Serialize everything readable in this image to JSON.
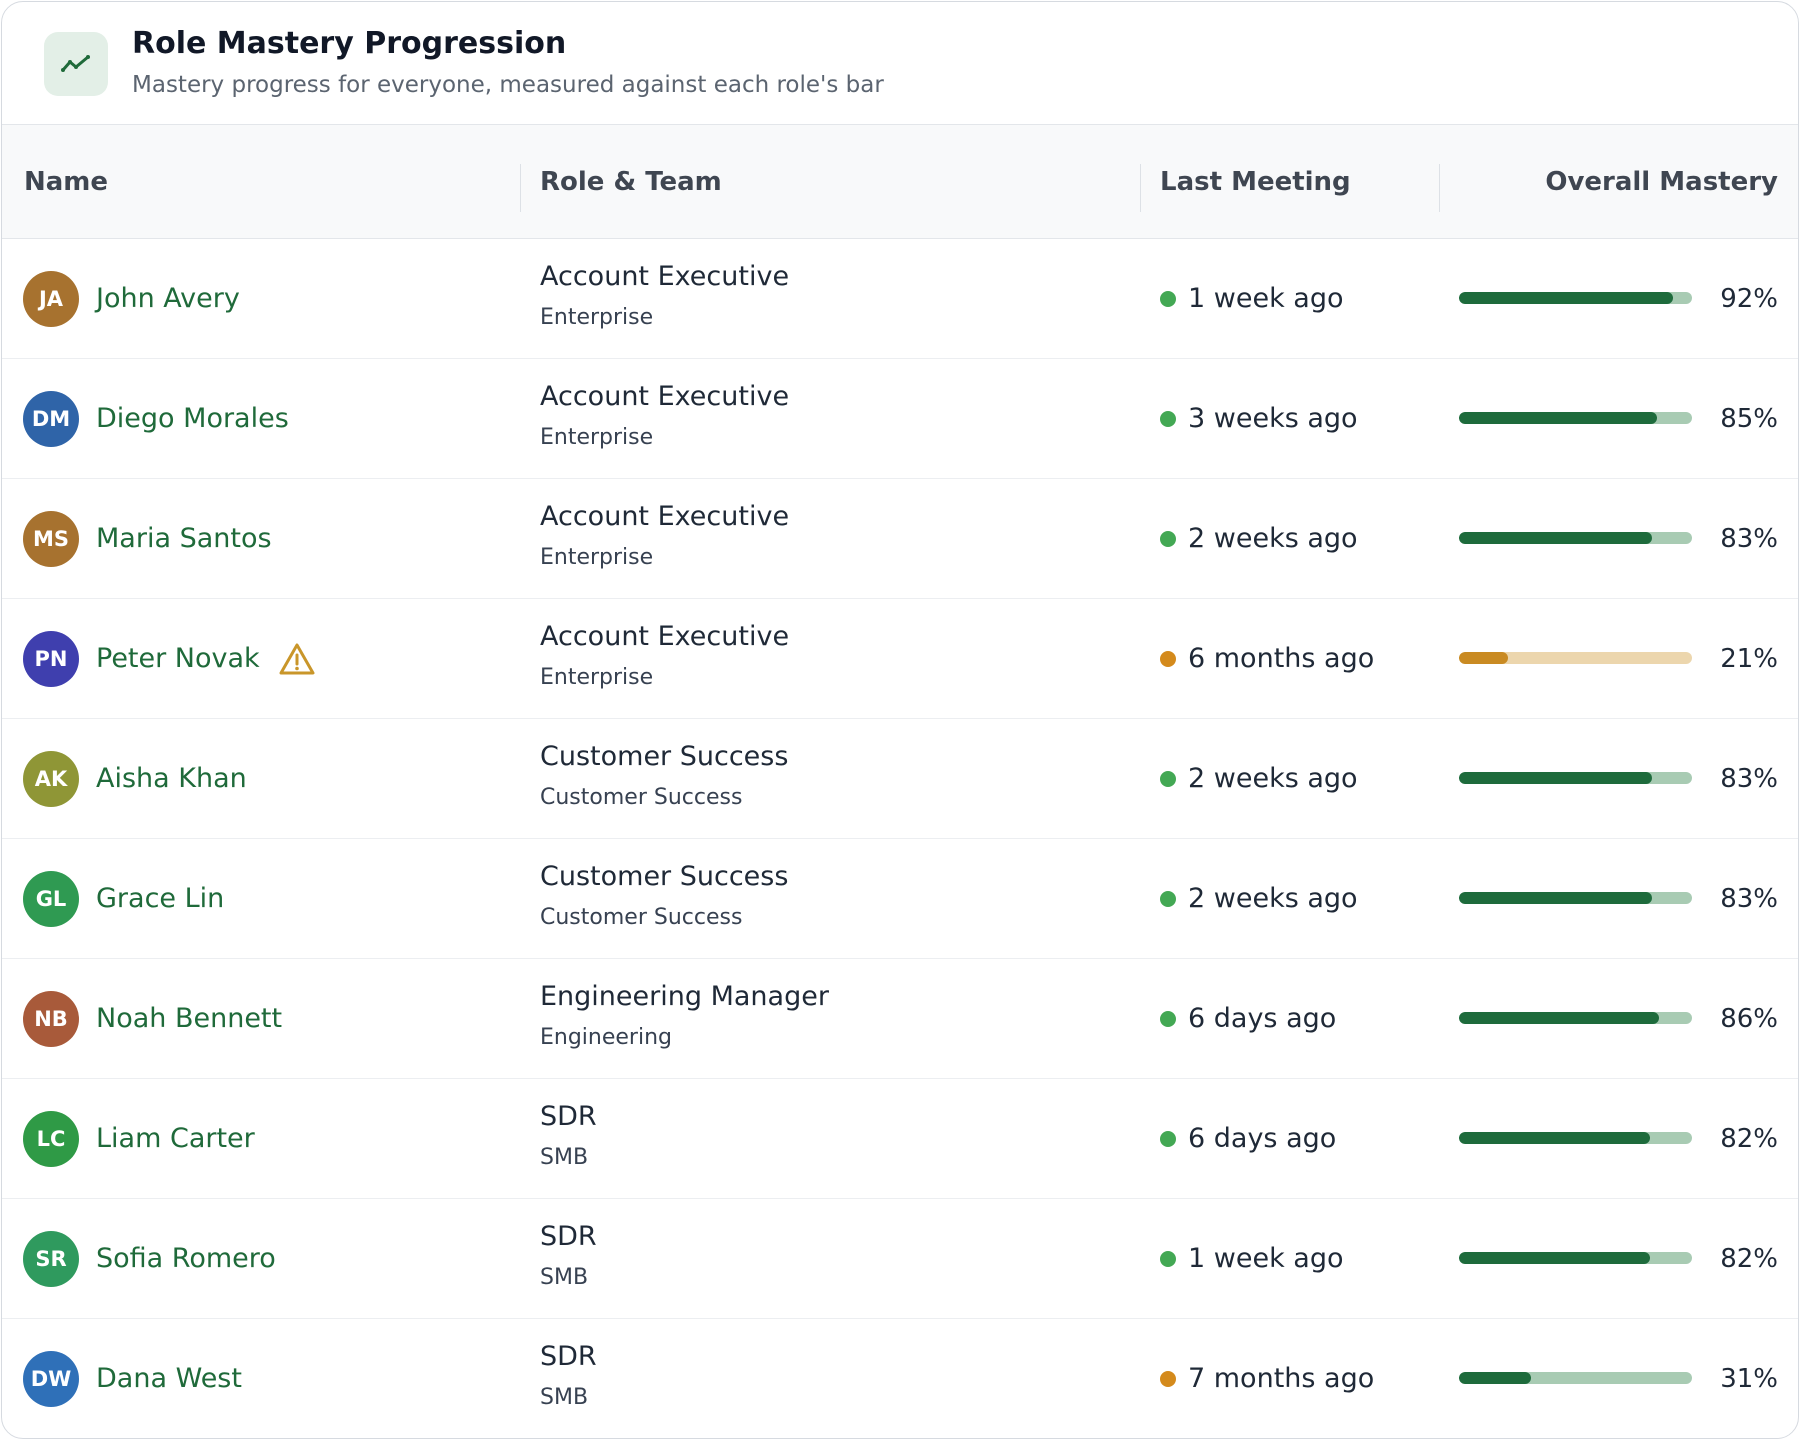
{
  "header": {
    "title": "Role Mastery Progression",
    "subtitle": "Mastery progress for everyone, measured against each role's bar",
    "icon": "trend-line-icon"
  },
  "columns": {
    "name": "Name",
    "role_team": "Role & Team",
    "last_meeting": "Last Meeting",
    "overall_mastery": "Overall Mastery"
  },
  "colors": {
    "accent_green": "#1f6a3a",
    "bar_green": "#1e6b3c",
    "bar_green_track": "#a8cbb3",
    "bar_amber": "#c98a22",
    "bar_amber_track": "#ecd6ad",
    "dot_green": "#43a854",
    "dot_amber": "#d48a1c",
    "warning": "#c9962a"
  },
  "rows": [
    {
      "initials": "JA",
      "avatar_color": "#a7722f",
      "name": "John Avery",
      "warning": false,
      "role": "Account Executive",
      "team": "Enterprise",
      "last_meeting": "1 week ago",
      "status": "recent",
      "mastery": 92,
      "mastery_label": "92%"
    },
    {
      "initials": "DM",
      "avatar_color": "#2f64a8",
      "name": "Diego Morales",
      "warning": false,
      "role": "Account Executive",
      "team": "Enterprise",
      "last_meeting": "3 weeks ago",
      "status": "recent",
      "mastery": 85,
      "mastery_label": "85%"
    },
    {
      "initials": "MS",
      "avatar_color": "#a7722f",
      "name": "Maria Santos",
      "warning": false,
      "role": "Account Executive",
      "team": "Enterprise",
      "last_meeting": "2 weeks ago",
      "status": "recent",
      "mastery": 83,
      "mastery_label": "83%"
    },
    {
      "initials": "PN",
      "avatar_color": "#3f3fae",
      "name": "Peter Novak",
      "warning": true,
      "role": "Account Executive",
      "team": "Enterprise",
      "last_meeting": "6 months ago",
      "status": "stale",
      "mastery": 21,
      "mastery_label": "21%"
    },
    {
      "initials": "AK",
      "avatar_color": "#8f9636",
      "name": "Aisha Khan",
      "warning": false,
      "role": "Customer Success",
      "team": "Customer Success",
      "last_meeting": "2 weeks ago",
      "status": "recent",
      "mastery": 83,
      "mastery_label": "83%"
    },
    {
      "initials": "GL",
      "avatar_color": "#2f9a52",
      "name": "Grace Lin",
      "warning": false,
      "role": "Customer Success",
      "team": "Customer Success",
      "last_meeting": "2 weeks ago",
      "status": "recent",
      "mastery": 83,
      "mastery_label": "83%"
    },
    {
      "initials": "NB",
      "avatar_color": "#a85a3a",
      "name": "Noah Bennett",
      "warning": false,
      "role": "Engineering Manager",
      "team": "Engineering",
      "last_meeting": "6 days ago",
      "status": "recent",
      "mastery": 86,
      "mastery_label": "86%"
    },
    {
      "initials": "LC",
      "avatar_color": "#2f9a46",
      "name": "Liam Carter",
      "warning": false,
      "role": "SDR",
      "team": "SMB",
      "last_meeting": "6 days ago",
      "status": "recent",
      "mastery": 82,
      "mastery_label": "82%"
    },
    {
      "initials": "SR",
      "avatar_color": "#2f9a5e",
      "name": "Sofia Romero",
      "warning": false,
      "role": "SDR",
      "team": "SMB",
      "last_meeting": "1 week ago",
      "status": "recent",
      "mastery": 82,
      "mastery_label": "82%"
    },
    {
      "initials": "DW",
      "avatar_color": "#2f70b8",
      "name": "Dana West",
      "warning": false,
      "role": "SDR",
      "team": "SMB",
      "last_meeting": "7 months ago",
      "status": "stale",
      "mastery": 31,
      "mastery_label": "31%"
    }
  ]
}
